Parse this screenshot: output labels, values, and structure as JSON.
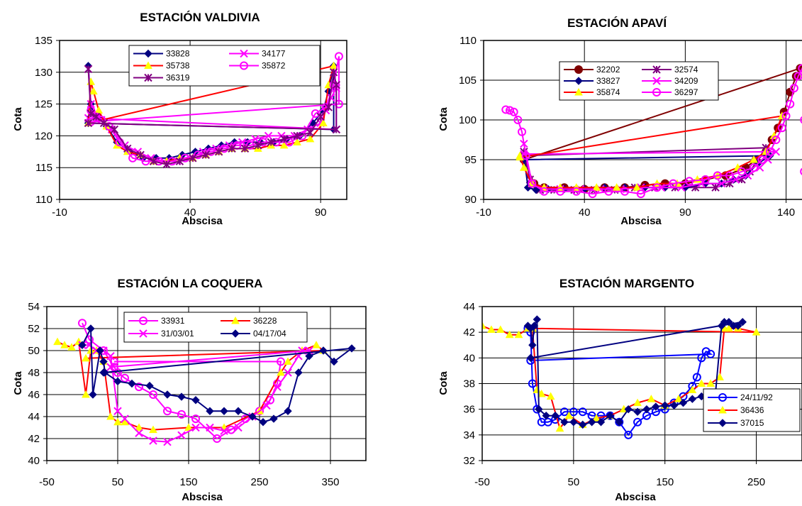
{
  "chart_data": [
    {
      "type": "line",
      "title": "ESTACIÓN VALDIVIA",
      "xlabel": "Abscisa",
      "ylabel": "Cota",
      "xlim": [
        -10,
        100
      ],
      "ylim": [
        110,
        135
      ],
      "xticks": [
        "-10",
        "40",
        "90"
      ],
      "yticks": [
        "110",
        "115",
        "120",
        "125",
        "130",
        "135"
      ],
      "legend_position": "top",
      "series": [
        {
          "name": "33828",
          "color": "#000080",
          "marker": "diamond",
          "x": [
            1,
            2,
            3,
            5,
            8,
            12,
            17,
            22,
            27,
            32,
            37,
            42,
            47,
            52,
            57,
            62,
            67,
            72,
            77,
            82,
            87,
            91,
            93,
            95,
            95,
            1
          ],
          "y": [
            131,
            125,
            123.5,
            123,
            121.5,
            119,
            117.5,
            116.5,
            116.5,
            116.5,
            117,
            117.5,
            118,
            118.5,
            119,
            119,
            119,
            119,
            119.5,
            120,
            122,
            124,
            127,
            131,
            121,
            122
          ]
        },
        {
          "name": "34177",
          "color": "#ff00ff",
          "marker": "x",
          "x": [
            1,
            2,
            4,
            6,
            10,
            15,
            20,
            25,
            30,
            35,
            40,
            45,
            50,
            55,
            60,
            65,
            70,
            75,
            80,
            85,
            90,
            92,
            94,
            96,
            96,
            1
          ],
          "y": [
            130.5,
            125,
            123.5,
            122.5,
            121,
            118.5,
            117.5,
            116.5,
            116,
            116,
            116.5,
            117.5,
            118,
            118.5,
            119,
            119.5,
            120,
            120,
            120,
            121,
            122,
            124,
            126,
            127.5,
            121,
            122.8
          ]
        },
        {
          "name": "35738",
          "color": "#ffd700",
          "marker": "triangle",
          "x": [
            1,
            2,
            3,
            5,
            8,
            12,
            16,
            21,
            26,
            31,
            36,
            41,
            46,
            51,
            56,
            61,
            66,
            71,
            76,
            81,
            86,
            91,
            93,
            95,
            1
          ],
          "y": [
            122,
            128.5,
            127,
            124,
            121.5,
            118.5,
            117.5,
            117,
            116,
            116,
            116.5,
            116.5,
            117,
            117.5,
            118,
            118,
            118,
            118.5,
            118.5,
            119,
            119.5,
            122,
            128,
            131,
            122
          ]
        },
        {
          "name": "35872",
          "color": "#ff00ff",
          "marker": "circle",
          "x": [
            2,
            4,
            6,
            9,
            13,
            18,
            23,
            28,
            33,
            38,
            43,
            48,
            53,
            58,
            63,
            68,
            73,
            78,
            83,
            88,
            92,
            95,
            97,
            97,
            2
          ],
          "y": [
            124,
            123,
            122.5,
            121.5,
            119,
            116.5,
            116,
            116,
            116,
            116.5,
            117,
            117.5,
            118,
            118.5,
            118.5,
            119,
            119,
            119,
            120,
            123.5,
            124.5,
            128,
            132.5,
            125,
            122.2
          ]
        },
        {
          "name": "36319",
          "color": "#800080",
          "marker": "star",
          "x": [
            1,
            2,
            4,
            7,
            11,
            16,
            21,
            26,
            31,
            36,
            41,
            46,
            51,
            56,
            61,
            66,
            71,
            76,
            81,
            86,
            90,
            93,
            95,
            96,
            96,
            1
          ],
          "y": [
            130.5,
            123.5,
            123,
            122,
            121,
            118,
            117,
            116,
            115.5,
            116,
            116.5,
            117,
            117.5,
            118,
            118,
            118.5,
            119,
            119.5,
            120,
            120.5,
            123,
            124.5,
            130,
            128,
            121,
            122
          ]
        }
      ]
    },
    {
      "type": "line",
      "title": "ESTACIÓN APAVÍ",
      "xlabel": "Abscisa",
      "ylabel": "Cota",
      "xlim": [
        -10,
        150
      ],
      "ylim": [
        90,
        110
      ],
      "xticks": [
        "-10",
        "40",
        "90",
        "140"
      ],
      "yticks": [
        "90",
        "95",
        "100",
        "105",
        "110"
      ],
      "legend_position": "top",
      "series": [
        {
          "name": "32202",
          "color": "#800000",
          "marker": "circle",
          "x": [
            10,
            15,
            20,
            30,
            40,
            50,
            60,
            70,
            80,
            90,
            100,
            110,
            120,
            125,
            130,
            133,
            136,
            139,
            142,
            145,
            147,
            10
          ],
          "y": [
            95,
            92,
            91.5,
            91.5,
            91.3,
            91.5,
            91.5,
            91.8,
            92,
            92,
            92.5,
            93,
            94,
            95,
            96,
            97.5,
            99,
            101,
            103.5,
            105.5,
            106.5,
            95
          ]
        },
        {
          "name": "32574",
          "color": "#800080",
          "marker": "star",
          "x": [
            10,
            13,
            18,
            25,
            35,
            45,
            55,
            65,
            75,
            85,
            95,
            105,
            112,
            118,
            122,
            126,
            130,
            10
          ],
          "y": [
            96,
            92.5,
            91.2,
            91.2,
            91.2,
            91.2,
            91.2,
            91.5,
            91.5,
            91.5,
            91.5,
            91.5,
            92,
            92.5,
            93.5,
            95,
            96.5,
            95.5
          ]
        },
        {
          "name": "33827",
          "color": "#000080",
          "marker": "diamond",
          "x": [
            10,
            12,
            16,
            22,
            30,
            40,
            50,
            60,
            70,
            80,
            90,
            100,
            108,
            114,
            120,
            126,
            132,
            10
          ],
          "y": [
            95.5,
            91.5,
            91.2,
            91.3,
            91.3,
            91.3,
            91.5,
            91.5,
            91.5,
            91.5,
            91.5,
            92,
            92,
            92.5,
            93,
            94.5,
            95.5,
            95
          ]
        },
        {
          "name": "34209",
          "color": "#ff00ff",
          "marker": "x",
          "x": [
            10,
            14,
            20,
            28,
            38,
            48,
            58,
            68,
            78,
            88,
            98,
            108,
            115,
            121,
            127,
            131,
            135,
            10
          ],
          "y": [
            97,
            92,
            91.3,
            91.3,
            91.3,
            91.3,
            91.3,
            91.5,
            91.5,
            91.5,
            92,
            92,
            92.5,
            93,
            94,
            95,
            96,
            95.7
          ]
        },
        {
          "name": "35874",
          "color": "#ffd700",
          "marker": "triangle",
          "x": [
            8,
            10,
            14,
            20,
            28,
            36,
            46,
            56,
            66,
            76,
            86,
            96,
            106,
            116,
            124,
            130,
            134,
            138,
            8
          ],
          "y": [
            95.5,
            94,
            92,
            91.5,
            91.5,
            91.5,
            91.5,
            91.5,
            91.5,
            92,
            92,
            92.5,
            93,
            94,
            95,
            96,
            98,
            100.5,
            95.3
          ]
        },
        {
          "name": "36297",
          "color": "#ff00ff",
          "marker": "circle",
          "x": [
            1,
            3,
            5,
            7,
            9,
            11,
            14,
            20,
            28,
            36,
            44,
            52,
            60,
            68,
            76,
            84,
            92,
            100,
            106,
            112,
            118,
            124,
            128,
            132,
            135,
            138,
            140,
            142,
            144,
            146,
            148,
            149,
            149
          ],
          "y": [
            101.3,
            101.2,
            101,
            100,
            98.5,
            95.5,
            92,
            91,
            91,
            91,
            90.7,
            91,
            91,
            90.7,
            91.5,
            92,
            92.3,
            92.5,
            93,
            93,
            93.5,
            94,
            95,
            96,
            97.5,
            99,
            100.5,
            102,
            104,
            105.5,
            106.5,
            100,
            93.5
          ]
        }
      ]
    },
    {
      "type": "line",
      "title": "ESTACIÓN LA COQUERA",
      "xlabel": "Abscisa",
      "ylabel": "Cota",
      "xlim": [
        -50,
        400
      ],
      "ylim": [
        40,
        54
      ],
      "xticks": [
        "-50",
        "50",
        "150",
        "250",
        "350"
      ],
      "yticks": [
        "40",
        "42",
        "44",
        "46",
        "48",
        "50",
        "52",
        "54"
      ],
      "legend_position": "top",
      "series": [
        {
          "name": "33931",
          "color": "#ff00ff",
          "marker": "circle",
          "x": [
            0,
            10,
            30,
            45,
            50,
            60,
            80,
            100,
            120,
            140,
            160,
            190,
            210,
            230,
            250,
            265,
            275,
            280,
            45
          ],
          "y": [
            52.5,
            51,
            50,
            48.5,
            48,
            47.5,
            46.7,
            46,
            44.5,
            44.2,
            43.8,
            42,
            42.8,
            43.8,
            44.5,
            45.5,
            47,
            49,
            49
          ]
        },
        {
          "name": "36228",
          "color": "#ffd700",
          "marker": "triangle",
          "x": [
            -35,
            -25,
            -15,
            -5,
            5,
            12,
            20,
            30,
            40,
            50,
            60,
            80,
            100,
            150,
            200,
            250,
            280,
            290,
            310,
            330,
            340,
            5
          ],
          "y": [
            50.8,
            50.5,
            50.3,
            50.8,
            46,
            50,
            50,
            49,
            44,
            43.5,
            43.5,
            43,
            42.8,
            43,
            43,
            44.5,
            48,
            49,
            50,
            50.5,
            50,
            49.3
          ]
        },
        {
          "name": "31/03/01",
          "color": "#ff00ff",
          "marker": "x",
          "x": [
            0,
            10,
            20,
            30,
            40,
            50,
            60,
            80,
            100,
            120,
            140,
            160,
            180,
            200,
            220,
            240,
            260,
            275,
            290,
            305,
            310,
            320,
            40
          ],
          "y": [
            50.5,
            50.5,
            50,
            50,
            49.5,
            44.5,
            43.8,
            42.5,
            41.8,
            41.7,
            42.3,
            43,
            43,
            42.7,
            43,
            44,
            45,
            46.7,
            48,
            49.5,
            50,
            50,
            48.5
          ]
        },
        {
          "name": "04/17/04",
          "color": "#000080",
          "marker": "diamond",
          "x": [
            0,
            12,
            15,
            25,
            30,
            32,
            50,
            70,
            95,
            120,
            140,
            160,
            180,
            200,
            220,
            240,
            255,
            270,
            290,
            305,
            320,
            340,
            355,
            380,
            30
          ],
          "y": [
            50.5,
            52,
            46,
            50,
            49,
            48,
            47.2,
            47,
            46.8,
            46,
            45.8,
            45.5,
            44.5,
            44.5,
            44.5,
            44,
            43.5,
            43.8,
            44.5,
            48,
            49.5,
            50,
            49,
            50.2,
            48
          ]
        }
      ]
    },
    {
      "type": "line",
      "title": "ESTACIÓN  MARGENTO",
      "xlabel": "Abscisa",
      "ylabel": "Cota",
      "xlim": [
        -50,
        300
      ],
      "ylim": [
        32,
        44
      ],
      "xticks": [
        "-50",
        "50",
        "150",
        "250"
      ],
      "yticks": [
        "32",
        "34",
        "36",
        "38",
        "40",
        "42",
        "44"
      ],
      "legend_position": "bottom-right",
      "series": [
        {
          "name": "24/11/92",
          "color": "#0000ff",
          "marker": "circle",
          "x": [
            0,
            3,
            5,
            10,
            15,
            22,
            30,
            40,
            50,
            60,
            70,
            80,
            90,
            100,
            110,
            120,
            130,
            140,
            150,
            160,
            170,
            180,
            185,
            190,
            195,
            200,
            3
          ],
          "y": [
            42.3,
            42,
            38,
            36,
            35,
            35,
            35.2,
            35.8,
            35.8,
            35.8,
            35.5,
            35.5,
            35.5,
            35,
            34,
            35,
            35.5,
            35.8,
            36,
            36.5,
            37,
            37.8,
            38.5,
            40,
            40.5,
            40.3,
            39.8
          ]
        },
        {
          "name": "36436",
          "color": "#ff0000",
          "marker": "triangle",
          "x": [
            -50,
            -40,
            -30,
            -20,
            -10,
            0,
            5,
            10,
            15,
            25,
            35,
            45,
            60,
            75,
            90,
            105,
            120,
            135,
            150,
            165,
            180,
            190,
            200,
            210,
            215,
            220,
            230,
            250,
            5
          ],
          "y": [
            42.5,
            42.2,
            42.2,
            41.8,
            41.8,
            42.3,
            42.3,
            37.5,
            37.2,
            37,
            34.5,
            35.5,
            34.8,
            35.3,
            35.5,
            36,
            36.5,
            36.8,
            36.3,
            36.8,
            37.5,
            38,
            38,
            38.5,
            42.3,
            42.3,
            42.3,
            42,
            42.3
          ]
        },
        {
          "name": "37015",
          "color": "#000080",
          "marker": "diamond",
          "x": [
            0,
            3,
            5,
            7,
            10,
            12,
            20,
            30,
            40,
            50,
            60,
            70,
            80,
            90,
            100,
            110,
            120,
            130,
            140,
            150,
            160,
            170,
            180,
            190,
            200,
            205,
            212,
            215,
            220,
            225,
            230,
            235,
            3
          ],
          "y": [
            42.5,
            42.3,
            41,
            42.5,
            43,
            36,
            35.5,
            35.5,
            35,
            35,
            34.8,
            35,
            35,
            35.5,
            35,
            36,
            35.8,
            36,
            36.2,
            36.3,
            36.3,
            36.5,
            36.8,
            37,
            37,
            37,
            42.5,
            42.8,
            42.8,
            42.5,
            42.5,
            42.8,
            40
          ]
        }
      ]
    }
  ]
}
